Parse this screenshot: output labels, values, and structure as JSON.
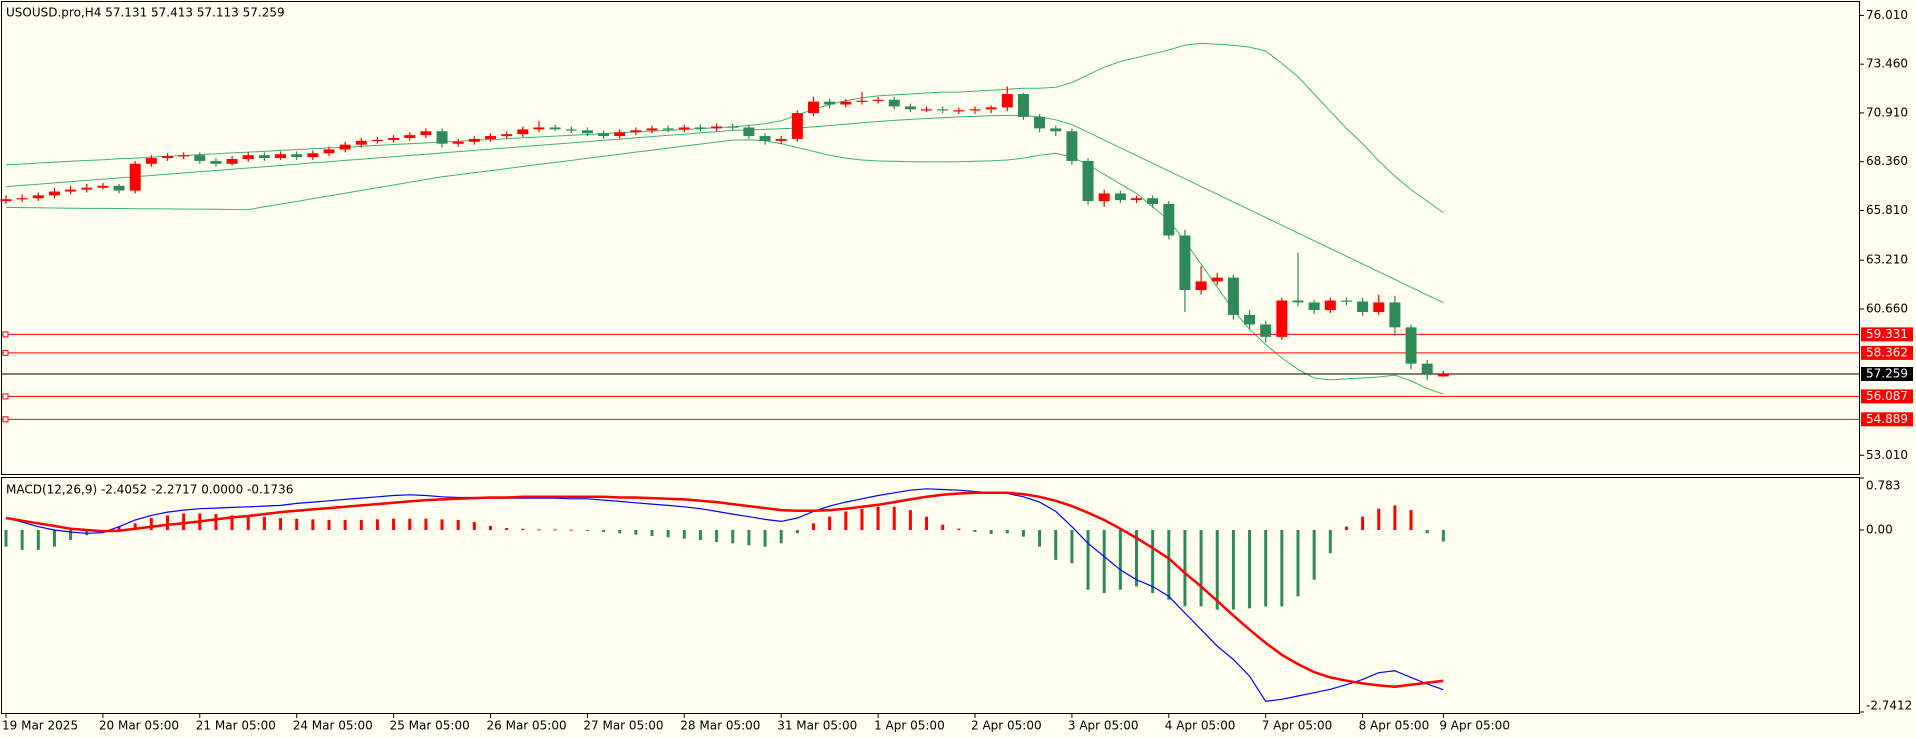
{
  "chart_data": [
    {
      "type": "candlestick",
      "title": "USOUSD.pro,H4  57.131 57.413 57.113 57.259",
      "categories": [
        "19 Mar 2025",
        null,
        null,
        null,
        null,
        null,
        "20 Mar 05:00",
        null,
        null,
        null,
        null,
        null,
        "21 Mar 05:00",
        null,
        null,
        null,
        null,
        null,
        "24 Mar 05:00",
        null,
        null,
        null,
        null,
        null,
        "25 Mar 05:00",
        null,
        null,
        null,
        null,
        null,
        "26 Mar 05:00",
        null,
        null,
        null,
        null,
        null,
        "27 Mar 05:00",
        null,
        null,
        null,
        null,
        null,
        "28 Mar 05:00",
        null,
        null,
        null,
        null,
        null,
        "31 Mar 05:00",
        null,
        null,
        null,
        null,
        null,
        "1 Apr 05:00",
        null,
        null,
        null,
        null,
        null,
        "2 Apr 05:00",
        null,
        null,
        null,
        null,
        null,
        "3 Apr 05:00",
        null,
        null,
        null,
        null,
        null,
        "4 Apr 05:00",
        null,
        null,
        null,
        null,
        null,
        "7 Apr 05:00",
        null,
        null,
        null,
        null,
        null,
        "8 Apr 05:00",
        null,
        null,
        null,
        null,
        "9 Apr 05:00"
      ],
      "open": [
        66.3,
        66.4,
        66.45,
        66.6,
        66.8,
        66.9,
        67.0,
        67.1,
        66.85,
        68.25,
        68.55,
        68.65,
        68.7,
        68.4,
        68.25,
        68.5,
        68.7,
        68.55,
        68.75,
        68.6,
        68.8,
        69.0,
        69.25,
        69.45,
        69.5,
        69.6,
        69.75,
        69.95,
        69.3,
        69.4,
        69.55,
        69.7,
        69.8,
        70.05,
        70.15,
        70.05,
        70.0,
        69.85,
        69.7,
        69.9,
        70.0,
        70.1,
        70.05,
        70.15,
        70.1,
        70.2,
        70.15,
        69.7,
        69.45,
        69.55,
        70.9,
        71.5,
        71.35,
        71.5,
        71.55,
        71.6,
        71.25,
        71.1,
        71.1,
        71.05,
        71.05,
        71.1,
        71.2,
        71.9,
        70.7,
        70.1,
        69.95,
        68.4,
        66.3,
        66.7,
        66.35,
        66.45,
        66.15,
        64.5,
        61.65,
        62.1,
        62.3,
        60.35,
        59.85,
        59.2,
        61.1,
        61.0,
        60.6,
        61.1,
        61.05,
        60.5,
        61.0,
        59.7,
        57.8,
        57.131
      ],
      "high": [
        66.6,
        66.65,
        66.75,
        67.0,
        67.1,
        67.2,
        67.25,
        67.2,
        68.4,
        68.7,
        68.8,
        68.85,
        68.85,
        68.55,
        68.65,
        68.85,
        68.85,
        68.9,
        68.9,
        68.95,
        69.15,
        69.4,
        69.6,
        69.65,
        69.75,
        69.9,
        70.1,
        70.1,
        69.55,
        69.7,
        69.85,
        69.95,
        70.2,
        70.5,
        70.3,
        70.2,
        70.15,
        70.0,
        70.05,
        70.15,
        70.25,
        70.25,
        70.3,
        70.3,
        70.35,
        70.35,
        70.3,
        69.85,
        69.7,
        71.05,
        71.75,
        71.65,
        71.65,
        72.0,
        71.75,
        71.75,
        71.4,
        71.25,
        71.25,
        71.2,
        71.25,
        71.3,
        72.3,
        71.95,
        70.85,
        70.25,
        70.1,
        68.55,
        66.9,
        66.85,
        66.6,
        66.6,
        66.3,
        64.8,
        62.9,
        62.55,
        62.45,
        60.6,
        60.05,
        61.25,
        63.6,
        61.15,
        61.25,
        61.25,
        61.25,
        61.4,
        61.35,
        59.85,
        58.0,
        57.413
      ],
      "low": [
        66.15,
        66.25,
        66.3,
        66.45,
        66.65,
        66.75,
        66.9,
        66.7,
        66.7,
        68.1,
        68.4,
        68.5,
        68.25,
        68.1,
        68.15,
        68.35,
        68.4,
        68.45,
        68.45,
        68.45,
        68.65,
        68.85,
        69.1,
        69.3,
        69.35,
        69.45,
        69.6,
        69.1,
        69.15,
        69.25,
        69.4,
        69.55,
        69.65,
        69.9,
        69.95,
        69.85,
        69.7,
        69.55,
        69.55,
        69.75,
        69.85,
        69.9,
        69.9,
        69.95,
        69.95,
        70.0,
        69.55,
        69.25,
        69.3,
        69.4,
        70.75,
        71.15,
        71.2,
        71.35,
        71.4,
        71.1,
        70.95,
        70.95,
        70.9,
        70.85,
        70.85,
        70.9,
        71.0,
        70.55,
        69.9,
        69.7,
        68.2,
        66.1,
        66.0,
        66.2,
        66.2,
        65.95,
        64.3,
        60.5,
        61.4,
        61.9,
        60.1,
        59.6,
        58.9,
        59.05,
        60.8,
        60.4,
        60.45,
        60.85,
        60.3,
        60.35,
        59.25,
        57.5,
        56.95,
        57.113
      ],
      "close": [
        66.4,
        66.45,
        66.6,
        66.8,
        66.9,
        67.0,
        67.1,
        66.85,
        68.25,
        68.55,
        68.65,
        68.7,
        68.4,
        68.25,
        68.5,
        68.7,
        68.55,
        68.75,
        68.6,
        68.8,
        69.0,
        69.25,
        69.45,
        69.5,
        69.6,
        69.75,
        69.95,
        69.3,
        69.4,
        69.55,
        69.7,
        69.8,
        70.05,
        70.15,
        70.05,
        70.0,
        69.85,
        69.7,
        69.9,
        70.0,
        70.1,
        70.05,
        70.15,
        70.1,
        70.2,
        70.15,
        69.7,
        69.45,
        69.55,
        70.9,
        71.5,
        71.35,
        71.5,
        71.55,
        71.6,
        71.25,
        71.1,
        71.1,
        71.05,
        71.05,
        71.1,
        71.2,
        71.9,
        70.7,
        70.1,
        69.95,
        68.4,
        66.3,
        66.7,
        66.35,
        66.45,
        66.15,
        64.5,
        61.65,
        62.1,
        62.3,
        60.35,
        59.85,
        59.2,
        61.1,
        61.0,
        60.6,
        61.1,
        61.05,
        60.5,
        61.0,
        59.7,
        57.8,
        57.3,
        57.259
      ],
      "up_color": "#ff0000",
      "down_color": "#2e8b57",
      "overlays": [
        {
          "color": "#3cb371",
          "values": [
            68.2,
            68.24,
            68.29,
            68.33,
            68.38,
            68.42,
            68.46,
            68.51,
            68.55,
            68.6,
            68.64,
            68.68,
            68.73,
            68.77,
            68.82,
            68.86,
            68.9,
            68.95,
            68.99,
            69.04,
            69.08,
            69.12,
            69.17,
            69.21,
            69.26,
            69.3,
            69.34,
            69.39,
            69.43,
            69.48,
            69.52,
            69.56,
            69.61,
            69.65,
            69.7,
            69.74,
            69.78,
            69.83,
            69.87,
            69.92,
            69.96,
            70.0,
            70.05,
            70.09,
            70.14,
            70.18,
            70.25,
            70.35,
            70.5,
            70.8,
            71.1,
            71.35,
            71.55,
            71.7,
            71.8,
            71.85,
            71.9,
            71.95,
            72.0,
            72.0,
            72.05,
            72.1,
            72.15,
            72.2,
            72.2,
            72.25,
            72.5,
            72.9,
            73.3,
            73.6,
            73.8,
            74.0,
            74.2,
            74.45,
            74.55,
            74.5,
            74.45,
            74.35,
            74.15,
            73.5,
            72.8,
            71.9,
            71.0,
            70.1,
            69.3,
            68.4,
            67.6,
            66.9,
            66.3,
            65.7
          ]
        },
        {
          "color": "#3cb371",
          "values": [
            67.05,
            67.12,
            67.18,
            67.25,
            67.31,
            67.38,
            67.44,
            67.51,
            67.57,
            67.64,
            67.71,
            67.77,
            67.84,
            67.9,
            67.97,
            68.03,
            68.1,
            68.16,
            68.23,
            68.3,
            68.36,
            68.43,
            68.49,
            68.56,
            68.62,
            68.69,
            68.75,
            68.82,
            68.89,
            68.95,
            69.02,
            69.08,
            69.15,
            69.21,
            69.28,
            69.34,
            69.41,
            69.48,
            69.54,
            69.61,
            69.67,
            69.74,
            69.8,
            69.87,
            69.93,
            70.0,
            70.02,
            70.05,
            70.08,
            70.12,
            70.18,
            70.25,
            70.32,
            70.4,
            70.46,
            70.52,
            70.57,
            70.62,
            70.66,
            70.7,
            70.73,
            70.76,
            70.78,
            70.78,
            70.7,
            70.55,
            70.3,
            69.9,
            69.49,
            69.09,
            68.68,
            68.28,
            67.87,
            67.47,
            67.06,
            66.66,
            66.25,
            65.85,
            65.44,
            65.04,
            64.63,
            64.23,
            63.82,
            63.42,
            63.01,
            62.61,
            62.2,
            61.8,
            61.39,
            60.99
          ]
        },
        {
          "color": "#3cb371",
          "values": [
            65.97,
            65.96,
            65.95,
            65.94,
            65.93,
            65.92,
            65.92,
            65.91,
            65.9,
            65.9,
            65.89,
            65.88,
            65.88,
            65.87,
            65.86,
            65.85,
            66.0,
            66.14,
            66.28,
            66.43,
            66.57,
            66.71,
            66.86,
            67.0,
            67.14,
            67.28,
            67.43,
            67.57,
            67.68,
            67.79,
            67.89,
            68.0,
            68.11,
            68.22,
            68.32,
            68.43,
            68.54,
            68.64,
            68.75,
            68.86,
            68.96,
            69.07,
            69.18,
            69.28,
            69.39,
            69.49,
            69.5,
            69.45,
            69.3,
            69.1,
            68.9,
            68.7,
            68.55,
            68.45,
            68.4,
            68.38,
            68.36,
            68.35,
            68.35,
            68.36,
            68.38,
            68.4,
            68.45,
            68.55,
            68.7,
            68.8,
            68.6,
            68.2,
            67.7,
            67.2,
            66.7,
            66.0,
            65.3,
            64.2,
            63.0,
            61.8,
            60.6,
            59.6,
            58.8,
            58.1,
            57.5,
            57.05,
            56.95,
            57.0,
            57.05,
            57.1,
            57.2,
            56.9,
            56.5,
            56.2
          ]
        }
      ],
      "ylim": [
        52.03,
        76.71
      ],
      "yticks": [
        {
          "value": 76.01,
          "label": "76.010"
        },
        {
          "value": 73.46,
          "label": "73.460"
        },
        {
          "value": 70.91,
          "label": "70.910"
        },
        {
          "value": 68.36,
          "label": "68.360"
        },
        {
          "value": 65.81,
          "label": "65.810"
        },
        {
          "value": 63.21,
          "label": "63.210"
        },
        {
          "value": 60.66,
          "label": "60.660"
        },
        {
          "value": 53.01,
          "label": "53.010"
        }
      ],
      "levels": [
        59.331,
        58.362,
        56.087,
        54.889
      ],
      "level_color": "#ff0000",
      "current_price": 57.259,
      "current_price_color": "#000000"
    },
    {
      "type": "macd",
      "title": "MACD(12,26,9) -2.4052 -2.2717 0.0000 -0.1736",
      "histogram": {
        "up_color": "#ff0000",
        "down_color": "#2e8b57",
        "values": [
          -0.25,
          -0.3,
          -0.3,
          -0.25,
          -0.15,
          -0.08,
          -0.02,
          0.05,
          0.1,
          0.18,
          0.22,
          0.25,
          0.25,
          0.24,
          0.22,
          0.2,
          0.2,
          0.18,
          0.17,
          0.16,
          0.15,
          0.15,
          0.15,
          0.16,
          0.17,
          0.17,
          0.17,
          0.16,
          0.15,
          0.12,
          0.06,
          0.03,
          0.02,
          0.01,
          0.01,
          0.005,
          -0.01,
          -0.03,
          -0.05,
          -0.07,
          -0.09,
          -0.11,
          -0.13,
          -0.15,
          -0.18,
          -0.2,
          -0.23,
          -0.25,
          -0.2,
          -0.05,
          0.1,
          0.2,
          0.28,
          0.32,
          0.35,
          0.35,
          0.3,
          0.2,
          0.08,
          0.02,
          -0.03,
          -0.06,
          -0.05,
          -0.1,
          -0.25,
          -0.45,
          -0.5,
          -0.9,
          -0.95,
          -0.9,
          -0.85,
          -0.95,
          -1.05,
          -1.15,
          -1.15,
          -1.2,
          -1.2,
          -1.18,
          -1.15,
          -1.15,
          -1.0,
          -0.75,
          -0.35,
          0.05,
          0.2,
          0.32,
          0.37,
          0.3,
          -0.05,
          -0.1736
        ]
      },
      "series": [
        {
          "color": "#0000ff",
          "values": [
            0.18,
            0.12,
            0.05,
            0.0,
            -0.03,
            -0.05,
            -0.04,
            0.05,
            0.15,
            0.22,
            0.27,
            0.3,
            0.32,
            0.33,
            0.34,
            0.35,
            0.36,
            0.37,
            0.4,
            0.42,
            0.44,
            0.46,
            0.48,
            0.5,
            0.52,
            0.53,
            0.52,
            0.5,
            0.49,
            0.49,
            0.48,
            0.48,
            0.48,
            0.48,
            0.48,
            0.47,
            0.47,
            0.45,
            0.43,
            0.41,
            0.39,
            0.37,
            0.35,
            0.32,
            0.28,
            0.24,
            0.2,
            0.16,
            0.13,
            0.18,
            0.28,
            0.36,
            0.42,
            0.47,
            0.52,
            0.56,
            0.6,
            0.62,
            0.61,
            0.6,
            0.58,
            0.56,
            0.55,
            0.5,
            0.42,
            0.28,
            0.05,
            -0.2,
            -0.4,
            -0.6,
            -0.75,
            -0.85,
            -1.0,
            -1.25,
            -1.5,
            -1.75,
            -1.95,
            -2.2,
            -2.58,
            -2.55,
            -2.5,
            -2.45,
            -2.4,
            -2.33,
            -2.25,
            -2.15,
            -2.12,
            -2.22,
            -2.32,
            -2.4052
          ]
        },
        {
          "color": "#ff0000",
          "values": [
            0.18,
            0.14,
            0.1,
            0.06,
            0.02,
            0.0,
            -0.02,
            -0.01,
            0.02,
            0.05,
            0.08,
            0.1,
            0.13,
            0.16,
            0.19,
            0.21,
            0.24,
            0.27,
            0.29,
            0.31,
            0.33,
            0.35,
            0.37,
            0.39,
            0.41,
            0.43,
            0.45,
            0.46,
            0.47,
            0.48,
            0.49,
            0.49,
            0.5,
            0.5,
            0.5,
            0.5,
            0.5,
            0.5,
            0.49,
            0.49,
            0.48,
            0.47,
            0.46,
            0.44,
            0.42,
            0.39,
            0.36,
            0.33,
            0.3,
            0.29,
            0.29,
            0.3,
            0.32,
            0.35,
            0.38,
            0.42,
            0.46,
            0.5,
            0.53,
            0.55,
            0.56,
            0.56,
            0.56,
            0.54,
            0.5,
            0.44,
            0.36,
            0.26,
            0.15,
            0.02,
            -0.12,
            -0.27,
            -0.43,
            -0.65,
            -0.85,
            -1.07,
            -1.29,
            -1.5,
            -1.7,
            -1.88,
            -2.02,
            -2.14,
            -2.22,
            -2.27,
            -2.31,
            -2.34,
            -2.36,
            -2.33,
            -2.3,
            -2.2717
          ]
        }
      ],
      "ylim": [
        -2.7412,
        0.783
      ],
      "yticks": [
        0.783,
        {
          "value": 0,
          "label": "0.00"
        },
        -2.7412
      ]
    }
  ]
}
